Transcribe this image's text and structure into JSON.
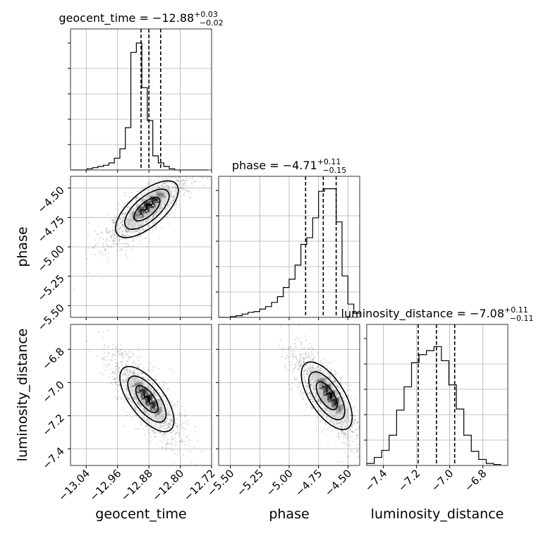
{
  "chart_data": {
    "type": "corner",
    "parameters": [
      {
        "key": "geocent_time",
        "label": "geocent_time",
        "title_prefix": "geocent_time = −12.88",
        "title_sup": "+0.03",
        "title_sub": "−0.02",
        "range": [
          -13.08,
          -12.72
        ],
        "ticks": [
          -13.04,
          -12.96,
          -12.88,
          -12.8,
          -12.72
        ],
        "tick_labels": [
          "−13.04",
          "−12.96",
          "−12.88",
          "−12.80",
          "−12.72"
        ],
        "quantiles": [
          -12.9,
          -12.88,
          -12.85
        ],
        "histogram": {
          "bin_edges": [
            -13.08,
            -13.066,
            -13.052,
            -13.038,
            -13.024,
            -13.01,
            -12.996,
            -12.982,
            -12.968,
            -12.954,
            -12.94,
            -12.926,
            -12.912,
            -12.898,
            -12.884,
            -12.87,
            -12.856,
            -12.842,
            -12.828,
            -12.814,
            -12.8,
            -12.786,
            -12.772,
            -12.758,
            -12.744,
            -12.73
          ],
          "counts": [
            0,
            0,
            0,
            1,
            2,
            3,
            4,
            6,
            10,
            18,
            36,
            100,
            108,
            70,
            42,
            12,
            6,
            3,
            1,
            0,
            0,
            0,
            0,
            0,
            0
          ],
          "ymax": 120
        }
      },
      {
        "key": "phase",
        "label": "phase",
        "title_prefix": "phase = −4.71",
        "title_sup": "+0.11",
        "title_sub": "−0.15",
        "range": [
          -5.6,
          -4.4
        ],
        "ticks": [
          -5.5,
          -5.25,
          -5.0,
          -4.75,
          -4.5
        ],
        "tick_labels": [
          "−5.50",
          "−5.25",
          "−5.00",
          "−4.75",
          "−4.50"
        ],
        "quantiles": [
          -4.86,
          -4.71,
          -4.6
        ],
        "histogram": {
          "bin_edges": [
            -5.6,
            -5.55,
            -5.5,
            -5.45,
            -5.4,
            -5.35,
            -5.3,
            -5.25,
            -5.2,
            -5.15,
            -5.1,
            -5.05,
            -5.0,
            -4.95,
            -4.9,
            -4.85,
            -4.8,
            -4.75,
            -4.7,
            -4.65,
            -4.6,
            -4.55,
            -4.5,
            -4.45,
            -4.4
          ],
          "counts": [
            0,
            0,
            1,
            2,
            4,
            6,
            7,
            10,
            13,
            18,
            25,
            36,
            46,
            63,
            88,
            96,
            120,
            152,
            155,
            155,
            115,
            50,
            16,
            5
          ],
          "ymax": 170
        }
      },
      {
        "key": "luminosity_distance",
        "label": "luminosity_distance",
        "title_prefix": "luminosity_distance = −7.08",
        "title_sup": "+0.11",
        "title_sub": "−0.11",
        "range": [
          -7.5,
          -6.65
        ],
        "ticks": [
          -7.4,
          -7.2,
          -7.0,
          -6.8
        ],
        "tick_labels": [
          "−7.4",
          "−7.2",
          "−7.0",
          "−6.8"
        ],
        "quantiles": [
          -7.19,
          -7.08,
          -6.97
        ],
        "histogram": {
          "bin_edges": [
            -7.5,
            -7.455,
            -7.41,
            -7.365,
            -7.32,
            -7.275,
            -7.23,
            -7.185,
            -7.14,
            -7.095,
            -7.05,
            -7.005,
            -6.96,
            -6.915,
            -6.87,
            -6.825,
            -6.78,
            -6.735,
            -6.69
          ],
          "counts": [
            2,
            8,
            15,
            30,
            55,
            78,
            102,
            110,
            114,
            118,
            104,
            80,
            56,
            30,
            14,
            6,
            2,
            1
          ],
          "ymax": 140
        }
      }
    ],
    "panels_2d": [
      {
        "x": "geocent_time",
        "y": "phase",
        "center": [
          -12.885,
          -4.68
        ],
        "axis_dir": [
          0.35,
          1.0
        ],
        "width": [
          0.016,
          0.1
        ],
        "peak": [
          -12.88,
          -4.66
        ],
        "levels": [
          0.7,
          1.2,
          1.7
        ]
      },
      {
        "x": "geocent_time",
        "y": "luminosity_distance",
        "center": [
          -12.885,
          -7.1
        ],
        "axis_dir": [
          0.32,
          -1.0
        ],
        "width": [
          0.018,
          0.08
        ],
        "peak": [
          -12.885,
          -7.1
        ],
        "levels": [
          0.7,
          1.2,
          1.7
        ]
      },
      {
        "x": "phase",
        "y": "luminosity_distance",
        "center": [
          -4.68,
          -7.08
        ],
        "axis_dir": [
          0.5,
          -0.55
        ],
        "width": [
          0.05,
          0.035
        ],
        "peak": [
          -4.66,
          -7.08
        ],
        "levels": [
          0.7,
          1.2,
          1.7
        ]
      }
    ]
  }
}
